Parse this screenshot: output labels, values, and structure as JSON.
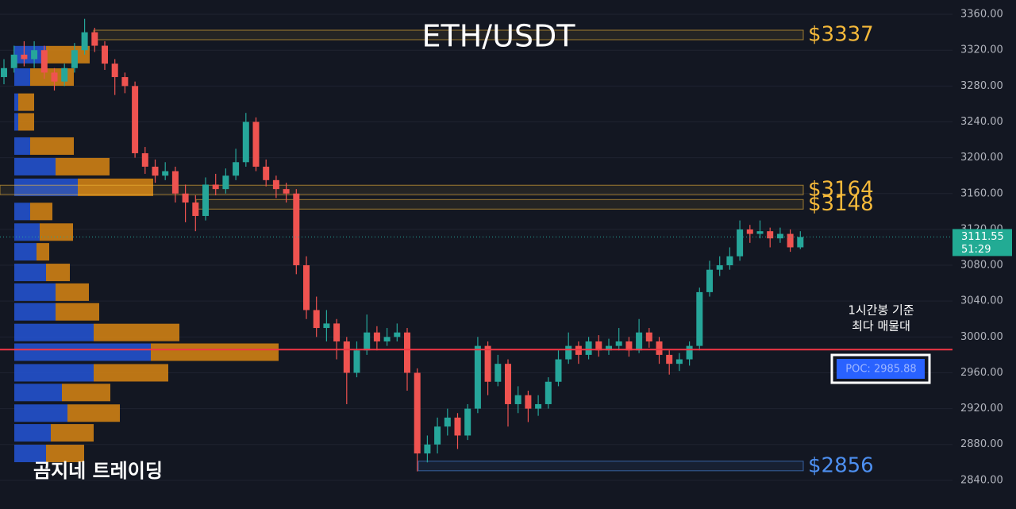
{
  "chart_data": {
    "type": "candlestick",
    "title": "ETH/USDT",
    "open": [
      3290,
      3300,
      3315,
      3310,
      3320,
      3295,
      3285,
      3300,
      3320,
      3340,
      3325,
      3305,
      3290,
      3280,
      3205,
      3190,
      3180,
      3185,
      3160,
      3150,
      3135,
      3170,
      3165,
      3180,
      3195,
      3240,
      3190,
      3175,
      3165,
      3160,
      3080,
      3030,
      3010,
      3015,
      2995,
      2960,
      2985,
      3005,
      2995,
      3000,
      3005,
      2960,
      2870,
      2880,
      2900,
      2910,
      2890,
      2920,
      2990,
      2950,
      2970,
      2925,
      2935,
      2920,
      2925,
      2950,
      2975,
      2990,
      2980,
      2995,
      2985,
      2990,
      2995,
      2985,
      3005,
      2995,
      2980,
      2970,
      2975,
      2990,
      3050,
      3075,
      3080,
      3090,
      3120,
      3115,
      3118,
      3110,
      3115,
      3100
    ],
    "high": [
      3310,
      3325,
      3330,
      3330,
      3325,
      3300,
      3305,
      3328,
      3355,
      3345,
      3330,
      3310,
      3295,
      3285,
      3212,
      3198,
      3195,
      3190,
      3170,
      3158,
      3178,
      3182,
      3188,
      3210,
      3250,
      3245,
      3198,
      3180,
      3172,
      3165,
      3090,
      3045,
      3030,
      3020,
      3000,
      2995,
      3025,
      3012,
      3010,
      3015,
      3010,
      2965,
      2890,
      2910,
      2920,
      2915,
      2925,
      3000,
      2995,
      2980,
      2975,
      2945,
      2940,
      2935,
      2955,
      2985,
      3005,
      2995,
      3000,
      3002,
      2998,
      3010,
      3000,
      3020,
      3010,
      3000,
      2985,
      2982,
      2995,
      3055,
      3085,
      3090,
      3100,
      3130,
      3125,
      3130,
      3122,
      3122,
      3120,
      3118
    ],
    "low": [
      3282,
      3295,
      3302,
      3300,
      3288,
      3275,
      3280,
      3295,
      3315,
      3318,
      3298,
      3270,
      3272,
      3200,
      3182,
      3172,
      3175,
      3150,
      3128,
      3118,
      3130,
      3158,
      3160,
      3175,
      3190,
      3185,
      3168,
      3155,
      3150,
      3070,
      3020,
      3000,
      2995,
      2975,
      2925,
      2955,
      2980,
      2985,
      2990,
      2995,
      2940,
      2850,
      2860,
      2870,
      2890,
      2875,
      2885,
      2915,
      2935,
      2945,
      2900,
      2915,
      2905,
      2912,
      2920,
      2945,
      2970,
      2970,
      2975,
      2978,
      2980,
      2985,
      2978,
      2982,
      2988,
      2970,
      2958,
      2962,
      2968,
      2985,
      3045,
      3068,
      3075,
      3085,
      3105,
      3110,
      3100,
      3105,
      3095,
      3098
    ],
    "close": [
      3300,
      3315,
      3310,
      3320,
      3295,
      3285,
      3300,
      3320,
      3340,
      3325,
      3305,
      3290,
      3280,
      3205,
      3190,
      3180,
      3185,
      3160,
      3150,
      3135,
      3170,
      3165,
      3180,
      3195,
      3240,
      3190,
      3175,
      3165,
      3160,
      3080,
      3030,
      3010,
      3015,
      2995,
      2960,
      2985,
      3005,
      2995,
      3000,
      3005,
      2960,
      2870,
      2880,
      2900,
      2910,
      2890,
      2920,
      2990,
      2950,
      2970,
      2925,
      2935,
      2920,
      2925,
      2950,
      2975,
      2990,
      2980,
      2995,
      2985,
      2990,
      2995,
      2985,
      3005,
      2995,
      2980,
      2970,
      2975,
      2990,
      3050,
      3075,
      3080,
      3090,
      3120,
      3115,
      3118,
      3110,
      3115,
      3100,
      3111.55
    ],
    "up_color": "#26a69a",
    "down_color": "#ef5350",
    "ylim": [
      2808,
      3376
    ],
    "yticks": [
      {
        "value": 3360,
        "label": "3360.00"
      },
      {
        "value": 3320,
        "label": "3320.00"
      },
      {
        "value": 3280,
        "label": "3280.00"
      },
      {
        "value": 3240,
        "label": "3240.00"
      },
      {
        "value": 3200,
        "label": "3200.00"
      },
      {
        "value": 3160,
        "label": "3160.00"
      },
      {
        "value": 3120,
        "label": "3120.00"
      },
      {
        "value": 3080,
        "label": "3080.00"
      },
      {
        "value": 3040,
        "label": "3040.00"
      },
      {
        "value": 3000,
        "label": "3000.00"
      },
      {
        "value": 2960,
        "label": "2960.00"
      },
      {
        "value": 2920,
        "label": "2920.00"
      },
      {
        "value": 2880,
        "label": "2880.00"
      },
      {
        "value": 2840,
        "label": "2840.00"
      }
    ],
    "grid": true,
    "levels": [
      {
        "value": 3337,
        "label": "$3337",
        "color": "#f5b93a"
      },
      {
        "value": 3164,
        "label": "$3164",
        "color": "#f5b93a"
      },
      {
        "value": 3148,
        "label": "$3148",
        "color": "#f5b93a"
      },
      {
        "value": 2856,
        "label": "$2856",
        "color": "#4d8ff0"
      }
    ],
    "volume_profile": {
      "prices": [
        3315,
        3290,
        3262,
        3240,
        3213,
        3190,
        3167,
        3140,
        3117,
        3095,
        3072,
        3050,
        3028,
        3005,
        2983,
        2960,
        2938,
        2915,
        2893,
        2870
      ],
      "buy": [
        40,
        20,
        5,
        5,
        20,
        52,
        80,
        20,
        32,
        28,
        40,
        52,
        52,
        100,
        172,
        100,
        60,
        67,
        46,
        40
      ],
      "sell": [
        55,
        55,
        20,
        20,
        55,
        68,
        95,
        28,
        42,
        16,
        30,
        42,
        55,
        108,
        161,
        94,
        61,
        66,
        54,
        48
      ],
      "buy_color": "#2455d6",
      "sell_color": "#d98613"
    },
    "last_price": 3111.55,
    "countdown": "51:29",
    "poc": {
      "value": 2985.88,
      "label": "POC: 2985.88",
      "color": "#f23645"
    },
    "annotation": [
      "1시간봉 기준",
      "최다 매물대"
    ],
    "watermark": "곰지네 트레이딩"
  }
}
